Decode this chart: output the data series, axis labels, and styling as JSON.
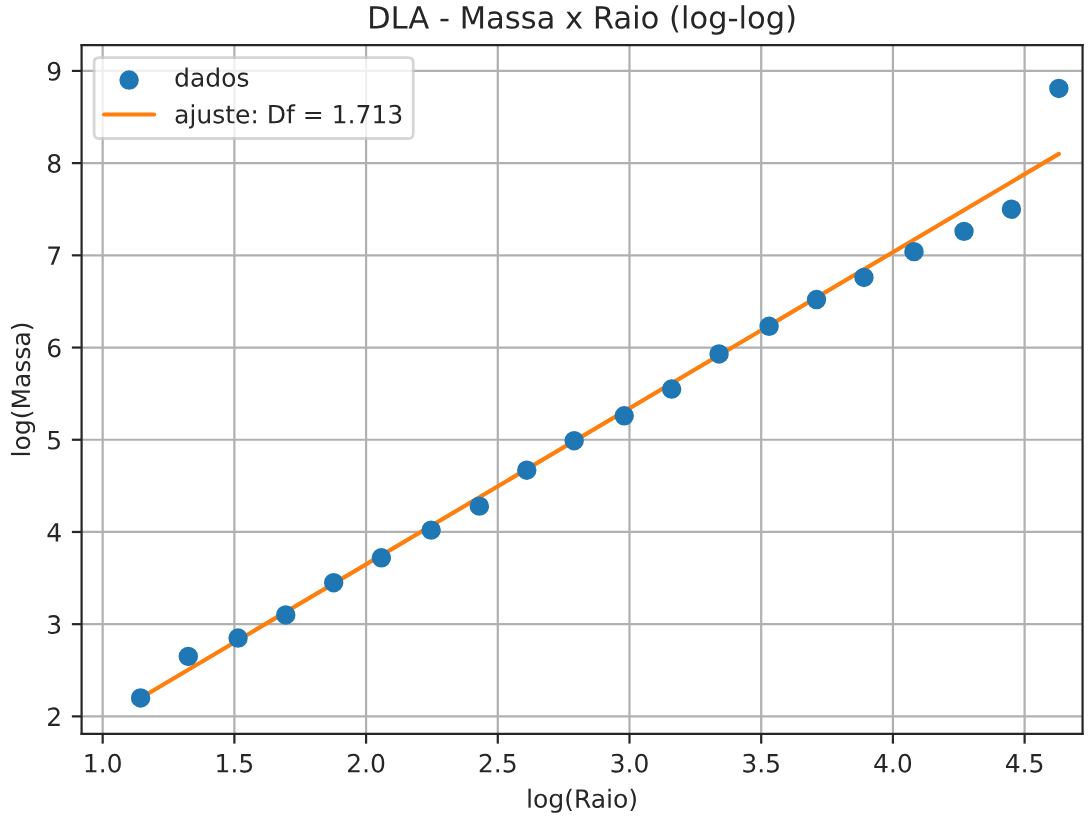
{
  "chart_data": {
    "type": "scatter",
    "title": "DLA - Massa x Raio (log-log)",
    "xlabel": "log(Raio)",
    "ylabel": "log(Massa)",
    "xlim": [
      0.92,
      4.72
    ],
    "ylim": [
      1.81,
      9.28
    ],
    "xticks": [
      {
        "value": 1.0,
        "label": "1.0"
      },
      {
        "value": 1.5,
        "label": "1.5"
      },
      {
        "value": 2.0,
        "label": "2.0"
      },
      {
        "value": 2.5,
        "label": "2.5"
      },
      {
        "value": 3.0,
        "label": "3.0"
      },
      {
        "value": 3.5,
        "label": "3.5"
      },
      {
        "value": 4.0,
        "label": "4.0"
      },
      {
        "value": 4.5,
        "label": "4.5"
      }
    ],
    "yticks": [
      2,
      3,
      4,
      5,
      6,
      7,
      8,
      9
    ],
    "grid": true,
    "legend": "top left",
    "series": [
      {
        "name": "dados",
        "marker": "circle",
        "color": "#1f77b4",
        "x": [
          1.144,
          1.325,
          1.514,
          1.695,
          1.877,
          2.058,
          2.247,
          2.43,
          2.61,
          2.79,
          2.98,
          3.16,
          3.34,
          3.53,
          3.71,
          3.89,
          4.08,
          4.27,
          4.45,
          4.63
        ],
        "values": [
          2.2,
          2.65,
          2.85,
          3.1,
          3.45,
          3.72,
          4.02,
          4.28,
          4.67,
          4.99,
          5.26,
          5.55,
          5.93,
          6.23,
          6.52,
          6.76,
          7.04,
          7.26,
          7.5,
          8.81
        ]
      },
      {
        "name": "ajuste: Df = 1.713",
        "type": "line",
        "marker": "none",
        "line_style": "solid",
        "color": "#ff7f0e",
        "x": [
          1.144,
          4.63
        ],
        "values": [
          2.2,
          8.1
        ]
      }
    ]
  }
}
